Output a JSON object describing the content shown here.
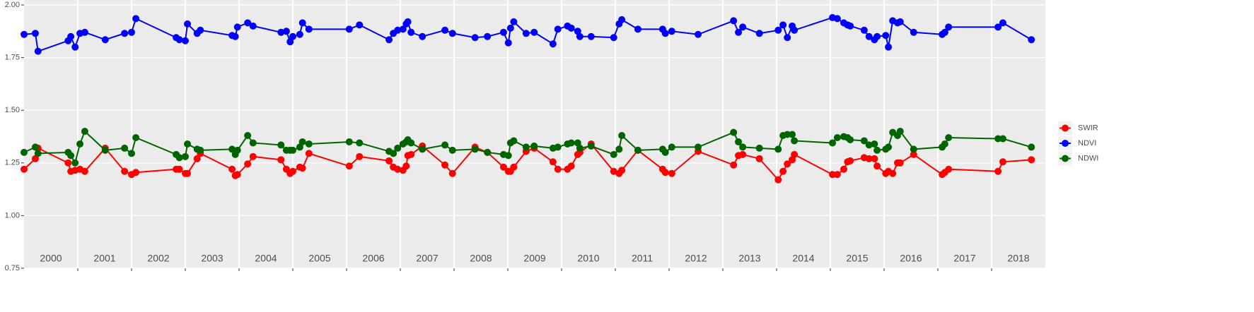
{
  "chart_data": {
    "type": "line",
    "x": [
      2000.0,
      2000.21,
      2000.26,
      2000.82,
      2000.87,
      2000.95,
      2001.04,
      2001.13,
      2001.51,
      2001.87,
      2002.0,
      2002.08,
      2002.83,
      2002.89,
      2003.0,
      2003.04,
      2003.22,
      2003.28,
      2003.87,
      2003.93,
      2003.97,
      2004.16,
      2004.26,
      2004.78,
      2004.88,
      2004.95,
      2005.0,
      2005.13,
      2005.18,
      2005.3,
      2006.05,
      2006.24,
      2006.79,
      2006.87,
      2006.95,
      2007.05,
      2007.11,
      2007.14,
      2007.2,
      2007.41,
      2007.83,
      2007.97,
      2008.39,
      2008.62,
      2008.92,
      2009.01,
      2009.05,
      2009.11,
      2009.34,
      2009.49,
      2009.84,
      2009.93,
      2010.11,
      2010.18,
      2010.3,
      2010.34,
      2010.55,
      2010.97,
      2011.07,
      2011.12,
      2011.42,
      2011.88,
      2011.93,
      2012.05,
      2012.54,
      2013.2,
      2013.29,
      2013.37,
      2013.68,
      2014.03,
      2014.12,
      2014.2,
      2014.29,
      2014.33,
      2015.04,
      2015.13,
      2015.25,
      2015.32,
      2015.37,
      2015.63,
      2015.72,
      2015.82,
      2015.87,
      2016.03,
      2016.08,
      2016.16,
      2016.25,
      2016.3,
      2016.55,
      2017.08,
      2017.13,
      2017.2,
      2018.12,
      2018.21,
      2018.74
    ],
    "series": [
      {
        "name": "SWIR",
        "color": "#ff0000",
        "values": [
          1.22,
          1.27,
          1.32,
          1.25,
          1.21,
          1.215,
          1.22,
          1.21,
          1.32,
          1.21,
          1.195,
          1.205,
          1.22,
          1.22,
          1.2,
          1.2,
          1.27,
          1.295,
          1.22,
          1.19,
          1.195,
          1.245,
          1.28,
          1.265,
          1.22,
          1.2,
          1.21,
          1.23,
          1.225,
          1.295,
          1.235,
          1.28,
          1.26,
          1.23,
          1.22,
          1.215,
          1.235,
          1.285,
          1.29,
          1.33,
          1.24,
          1.2,
          1.325,
          1.3,
          1.23,
          1.21,
          1.21,
          1.23,
          1.305,
          1.32,
          1.255,
          1.22,
          1.22,
          1.235,
          1.29,
          1.3,
          1.34,
          1.21,
          1.2,
          1.215,
          1.31,
          1.22,
          1.205,
          1.2,
          1.305,
          1.24,
          1.285,
          1.29,
          1.27,
          1.17,
          1.21,
          1.245,
          1.265,
          1.29,
          1.195,
          1.195,
          1.22,
          1.255,
          1.26,
          1.275,
          1.27,
          1.27,
          1.235,
          1.2,
          1.21,
          1.2,
          1.25,
          1.25,
          1.29,
          1.195,
          1.205,
          1.22,
          1.21,
          1.255,
          1.265
        ]
      },
      {
        "name": "NDVI",
        "color": "#0000ff",
        "values": [
          1.86,
          1.865,
          1.78,
          1.83,
          1.85,
          1.8,
          1.865,
          1.87,
          1.835,
          1.865,
          1.87,
          1.935,
          1.845,
          1.835,
          1.83,
          1.91,
          1.865,
          1.88,
          1.855,
          1.85,
          1.895,
          1.915,
          1.9,
          1.87,
          1.875,
          1.825,
          1.85,
          1.86,
          1.915,
          1.885,
          1.885,
          1.905,
          1.835,
          1.865,
          1.88,
          1.885,
          1.91,
          1.92,
          1.87,
          1.85,
          1.88,
          1.865,
          1.845,
          1.85,
          1.87,
          1.82,
          1.89,
          1.92,
          1.865,
          1.87,
          1.815,
          1.885,
          1.9,
          1.89,
          1.875,
          1.85,
          1.85,
          1.845,
          1.91,
          1.93,
          1.885,
          1.885,
          1.865,
          1.875,
          1.86,
          1.925,
          1.87,
          1.895,
          1.865,
          1.88,
          1.905,
          1.845,
          1.9,
          1.88,
          1.94,
          1.935,
          1.915,
          1.905,
          1.9,
          1.88,
          1.85,
          1.835,
          1.85,
          1.855,
          1.8,
          1.925,
          1.915,
          1.92,
          1.87,
          1.86,
          1.87,
          1.895,
          1.895,
          1.915,
          1.835
        ]
      },
      {
        "name": "NDWI",
        "color": "#006400",
        "values": [
          1.3,
          1.325,
          1.295,
          1.3,
          1.285,
          1.25,
          1.34,
          1.4,
          1.31,
          1.32,
          1.295,
          1.37,
          1.29,
          1.275,
          1.28,
          1.34,
          1.315,
          1.31,
          1.315,
          1.29,
          1.31,
          1.38,
          1.345,
          1.335,
          1.31,
          1.31,
          1.31,
          1.325,
          1.35,
          1.34,
          1.35,
          1.345,
          1.305,
          1.295,
          1.32,
          1.34,
          1.35,
          1.36,
          1.345,
          1.315,
          1.335,
          1.31,
          1.315,
          1.3,
          1.29,
          1.285,
          1.345,
          1.355,
          1.325,
          1.33,
          1.32,
          1.325,
          1.34,
          1.345,
          1.345,
          1.32,
          1.33,
          1.29,
          1.315,
          1.38,
          1.31,
          1.315,
          1.3,
          1.325,
          1.325,
          1.395,
          1.35,
          1.325,
          1.32,
          1.315,
          1.38,
          1.385,
          1.385,
          1.355,
          1.345,
          1.37,
          1.375,
          1.37,
          1.36,
          1.355,
          1.335,
          1.34,
          1.31,
          1.315,
          1.325,
          1.395,
          1.38,
          1.4,
          1.315,
          1.325,
          1.34,
          1.37,
          1.365,
          1.365,
          1.325
        ]
      }
    ],
    "xlim": [
      2000,
      2019
    ],
    "xticks": [
      2001,
      2002,
      2003,
      2004,
      2005,
      2006,
      2007,
      2008,
      2009,
      2010,
      2011,
      2012,
      2013,
      2014,
      2015,
      2016,
      2017,
      2018
    ],
    "year_labels": [
      2000,
      2001,
      2002,
      2003,
      2004,
      2005,
      2006,
      2007,
      2008,
      2009,
      2010,
      2011,
      2012,
      2013,
      2014,
      2015,
      2016,
      2017,
      2018
    ],
    "ylim": [
      0.75,
      2.0
    ],
    "yticks": [
      0.75,
      {
        "value": 1.0,
        "label": "1.00"
      },
      1.25,
      {
        "value": 1.5,
        "label": "1.50"
      },
      1.75,
      {
        "value": 2.0,
        "label": "2.00"
      }
    ],
    "grid": true,
    "legend": "right"
  }
}
